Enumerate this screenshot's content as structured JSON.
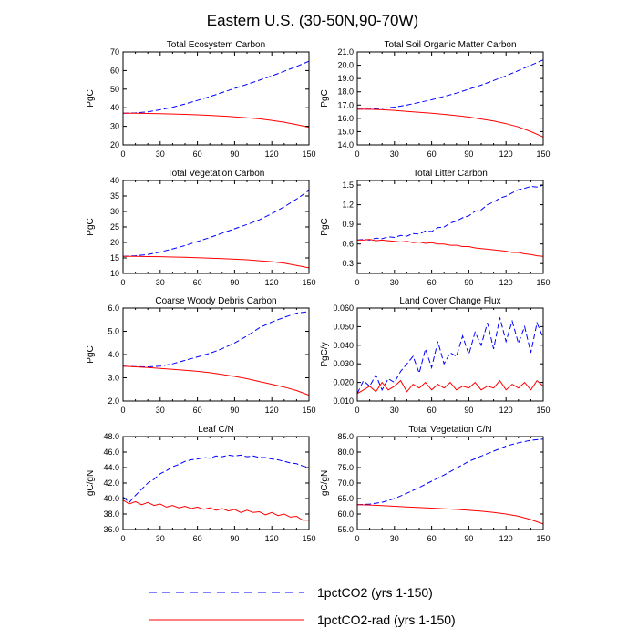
{
  "figure_title": "Eastern U.S. (30-50N,90-70W)",
  "legend": [
    {
      "label": "1pctCO2 (yrs 1-150)",
      "color": "#0000ff",
      "dash": "dashed"
    },
    {
      "label": "1pctCO2-rad (yrs 1-150)",
      "color": "#ff0000",
      "dash": "solid"
    }
  ],
  "chart_data": [
    {
      "type": "line",
      "title": "Total Ecosystem Carbon",
      "xlabel": "",
      "ylabel": "PgC",
      "xlim": [
        0,
        150
      ],
      "ylim": [
        20,
        70
      ],
      "xticks": [
        0,
        30,
        60,
        90,
        120,
        150
      ],
      "yticks": [
        20,
        30,
        40,
        50,
        60,
        70
      ],
      "yticklabels": [
        "20",
        "30",
        "40",
        "50",
        "60",
        "70"
      ],
      "x": [
        0,
        10,
        20,
        30,
        40,
        50,
        60,
        70,
        80,
        90,
        100,
        110,
        120,
        130,
        140,
        150
      ],
      "series": [
        {
          "name": "1pctCO2 (yrs 1-150)",
          "values": [
            37,
            37.2,
            37.8,
            38.9,
            40.3,
            42,
            43.9,
            46,
            48.2,
            50.4,
            52.6,
            54.8,
            57.1,
            59.6,
            62.2,
            65
          ]
        },
        {
          "name": "1pctCO2-rad (yrs 1-150)",
          "values": [
            37,
            37,
            36.9,
            36.8,
            36.6,
            36.4,
            36.2,
            35.9,
            35.5,
            35.1,
            34.6,
            34,
            33.2,
            32.2,
            30.9,
            29.5
          ]
        }
      ]
    },
    {
      "type": "line",
      "title": "Total Soil Organic Matter Carbon",
      "xlabel": "",
      "ylabel": "PgC",
      "xlim": [
        0,
        150
      ],
      "ylim": [
        14,
        21
      ],
      "xticks": [
        0,
        30,
        60,
        90,
        120,
        150
      ],
      "yticks": [
        14,
        15,
        16,
        17,
        18,
        19,
        20,
        21
      ],
      "yticklabels": [
        "14.0",
        "15.0",
        "16.0",
        "17.0",
        "18.0",
        "19.0",
        "20.0",
        "21.0"
      ],
      "x": [
        0,
        10,
        20,
        30,
        40,
        50,
        60,
        70,
        80,
        90,
        100,
        110,
        120,
        130,
        140,
        150
      ],
      "series": [
        {
          "name": "1pctCO2 (yrs 1-150)",
          "values": [
            16.7,
            16.7,
            16.75,
            16.85,
            17,
            17.2,
            17.4,
            17.65,
            17.9,
            18.2,
            18.5,
            18.85,
            19.2,
            19.6,
            20,
            20.4
          ]
        },
        {
          "name": "1pctCO2-rad (yrs 1-150)",
          "values": [
            16.7,
            16.68,
            16.65,
            16.6,
            16.52,
            16.45,
            16.38,
            16.3,
            16.2,
            16.1,
            15.95,
            15.8,
            15.6,
            15.35,
            15,
            14.6
          ]
        }
      ]
    },
    {
      "type": "line",
      "title": "Total Vegetation Carbon",
      "xlabel": "",
      "ylabel": "PgC",
      "xlim": [
        0,
        150
      ],
      "ylim": [
        10,
        40
      ],
      "xticks": [
        0,
        30,
        60,
        90,
        120,
        150
      ],
      "yticks": [
        10,
        15,
        20,
        25,
        30,
        35,
        40
      ],
      "yticklabels": [
        "10",
        "15",
        "20",
        "25",
        "30",
        "35",
        "40"
      ],
      "x": [
        0,
        10,
        20,
        30,
        40,
        50,
        60,
        70,
        80,
        90,
        100,
        110,
        120,
        130,
        140,
        150
      ],
      "series": [
        {
          "name": "1pctCO2 (yrs 1-150)",
          "values": [
            15.5,
            15.7,
            16.1,
            16.9,
            17.9,
            19,
            20.3,
            21.6,
            23,
            24.4,
            25.8,
            27.3,
            29.3,
            31.5,
            34,
            36.8
          ]
        },
        {
          "name": "1pctCO2-rad (yrs 1-150)",
          "values": [
            15.5,
            15.5,
            15.45,
            15.4,
            15.3,
            15.2,
            15.1,
            14.95,
            14.8,
            14.6,
            14.4,
            14.1,
            13.8,
            13.3,
            12.6,
            11.8
          ]
        }
      ]
    },
    {
      "type": "line",
      "title": "Total Litter Carbon",
      "xlabel": "",
      "ylabel": "PgC",
      "xlim": [
        0,
        150
      ],
      "ylim": [
        0.15,
        1.57
      ],
      "xticks": [
        0,
        30,
        60,
        90,
        120,
        150
      ],
      "yticks": [
        0.3,
        0.6,
        0.9,
        1.2,
        1.5
      ],
      "yticklabels": [
        "0.3",
        "0.6",
        "0.9",
        "1.2",
        "1.5"
      ],
      "x": [
        0,
        5,
        10,
        15,
        20,
        25,
        30,
        35,
        40,
        45,
        50,
        55,
        60,
        65,
        70,
        75,
        80,
        85,
        90,
        95,
        100,
        105,
        110,
        115,
        120,
        125,
        130,
        135,
        140,
        145,
        150
      ],
      "series": [
        {
          "name": "1pctCO2 (yrs 1-150)",
          "values": [
            0.66,
            0.67,
            0.66,
            0.69,
            0.68,
            0.71,
            0.7,
            0.73,
            0.72,
            0.76,
            0.75,
            0.8,
            0.79,
            0.85,
            0.86,
            0.92,
            0.95,
            1.0,
            1.03,
            1.1,
            1.12,
            1.2,
            1.24,
            1.3,
            1.33,
            1.38,
            1.43,
            1.45,
            1.48,
            1.47,
            1.5
          ]
        },
        {
          "name": "1pctCO2-rad (yrs 1-150)",
          "values": [
            0.66,
            0.66,
            0.67,
            0.65,
            0.66,
            0.65,
            0.64,
            0.63,
            0.64,
            0.62,
            0.63,
            0.61,
            0.62,
            0.6,
            0.6,
            0.58,
            0.58,
            0.56,
            0.56,
            0.54,
            0.53,
            0.52,
            0.51,
            0.5,
            0.49,
            0.47,
            0.47,
            0.45,
            0.44,
            0.42,
            0.41
          ]
        }
      ]
    },
    {
      "type": "line",
      "title": "Coarse Woody Debris Carbon",
      "xlabel": "",
      "ylabel": "PgC",
      "xlim": [
        0,
        150
      ],
      "ylim": [
        2,
        6
      ],
      "xticks": [
        0,
        30,
        60,
        90,
        120,
        150
      ],
      "yticks": [
        2,
        3,
        4,
        5,
        6
      ],
      "yticklabels": [
        "2.0",
        "3.0",
        "4.0",
        "5.0",
        "6.0"
      ],
      "x": [
        0,
        10,
        20,
        30,
        40,
        50,
        60,
        70,
        80,
        90,
        100,
        110,
        120,
        130,
        140,
        150
      ],
      "series": [
        {
          "name": "1pctCO2 (yrs 1-150)",
          "values": [
            3.5,
            3.48,
            3.47,
            3.5,
            3.6,
            3.75,
            3.9,
            4.05,
            4.25,
            4.5,
            4.8,
            5.15,
            5.4,
            5.6,
            5.78,
            5.85
          ]
        },
        {
          "name": "1pctCO2-rad (yrs 1-150)",
          "values": [
            3.5,
            3.47,
            3.44,
            3.4,
            3.36,
            3.32,
            3.28,
            3.22,
            3.14,
            3.06,
            2.96,
            2.84,
            2.72,
            2.6,
            2.45,
            2.25
          ]
        }
      ]
    },
    {
      "type": "line",
      "title": "Land Cover Change Flux",
      "xlabel": "",
      "ylabel": "PgC/y",
      "xlim": [
        0,
        150
      ],
      "ylim": [
        0.01,
        0.06
      ],
      "xticks": [
        0,
        30,
        60,
        90,
        120,
        150
      ],
      "yticks": [
        0.01,
        0.02,
        0.03,
        0.04,
        0.05,
        0.06
      ],
      "yticklabels": [
        "0.010",
        "0.020",
        "0.030",
        "0.040",
        "0.050",
        "0.060"
      ],
      "x": [
        0,
        5,
        10,
        15,
        20,
        25,
        30,
        35,
        40,
        45,
        50,
        55,
        60,
        65,
        70,
        75,
        80,
        85,
        90,
        95,
        100,
        105,
        110,
        115,
        120,
        125,
        130,
        135,
        140,
        145,
        150
      ],
      "series": [
        {
          "name": "1pctCO2 (yrs 1-150)",
          "values": [
            0.014,
            0.021,
            0.018,
            0.024,
            0.016,
            0.022,
            0.02,
            0.026,
            0.03,
            0.034,
            0.025,
            0.038,
            0.028,
            0.042,
            0.03,
            0.036,
            0.034,
            0.045,
            0.035,
            0.047,
            0.04,
            0.052,
            0.038,
            0.055,
            0.042,
            0.053,
            0.041,
            0.05,
            0.036,
            0.052,
            0.044
          ]
        },
        {
          "name": "1pctCO2-rad (yrs 1-150)",
          "values": [
            0.014,
            0.016,
            0.018,
            0.015,
            0.02,
            0.016,
            0.018,
            0.021,
            0.015,
            0.019,
            0.017,
            0.02,
            0.016,
            0.019,
            0.017,
            0.02,
            0.016,
            0.018,
            0.017,
            0.02,
            0.016,
            0.018,
            0.017,
            0.021,
            0.016,
            0.019,
            0.017,
            0.02,
            0.016,
            0.021,
            0.018
          ]
        }
      ]
    },
    {
      "type": "line",
      "title": "Leaf C/N",
      "xlabel": "",
      "ylabel": "gC/gN",
      "xlim": [
        0,
        150
      ],
      "ylim": [
        36,
        48
      ],
      "xticks": [
        0,
        30,
        60,
        90,
        120,
        150
      ],
      "yticks": [
        36,
        38,
        40,
        42,
        44,
        46,
        48
      ],
      "yticklabels": [
        "36.0",
        "38.0",
        "40.0",
        "42.0",
        "44.0",
        "46.0",
        "48.0"
      ],
      "x": [
        0,
        5,
        10,
        15,
        20,
        25,
        30,
        35,
        40,
        45,
        50,
        55,
        60,
        65,
        70,
        75,
        80,
        85,
        90,
        95,
        100,
        105,
        110,
        115,
        120,
        125,
        130,
        135,
        140,
        145,
        150
      ],
      "series": [
        {
          "name": "1pctCO2 (yrs 1-150)",
          "values": [
            40.2,
            39.5,
            40.4,
            41.2,
            42,
            42.5,
            43.2,
            43.6,
            44.1,
            44.4,
            44.8,
            45,
            45.1,
            45.3,
            45.2,
            45.5,
            45.4,
            45.6,
            45.5,
            45.6,
            45.4,
            45.5,
            45.3,
            45.3,
            45.1,
            45,
            44.8,
            44.6,
            44.5,
            44.2,
            44
          ]
        },
        {
          "name": "1pctCO2-rad (yrs 1-150)",
          "values": [
            39.8,
            39.3,
            39.6,
            39.2,
            39.5,
            39.1,
            39.3,
            38.9,
            39.1,
            38.8,
            39,
            38.7,
            38.9,
            38.6,
            38.8,
            38.5,
            38.7,
            38.4,
            38.6,
            38.2,
            38.5,
            38.2,
            38.3,
            37.9,
            38.2,
            37.8,
            38,
            37.6,
            37.7,
            37.2,
            37.2
          ]
        }
      ]
    },
    {
      "type": "line",
      "title": "Total Vegetation C/N",
      "xlabel": "",
      "ylabel": "gC/gN",
      "xlim": [
        0,
        150
      ],
      "ylim": [
        55,
        85
      ],
      "xticks": [
        0,
        30,
        60,
        90,
        120,
        150
      ],
      "yticks": [
        55,
        60,
        65,
        70,
        75,
        80,
        85
      ],
      "yticklabels": [
        "55.0",
        "60.0",
        "65.0",
        "70.0",
        "75.0",
        "80.0",
        "85.0"
      ],
      "x": [
        0,
        10,
        20,
        30,
        40,
        50,
        60,
        70,
        80,
        90,
        100,
        110,
        120,
        130,
        140,
        150
      ],
      "series": [
        {
          "name": "1pctCO2 (yrs 1-150)",
          "values": [
            63,
            63.2,
            63.8,
            65,
            66.7,
            68.6,
            70.6,
            72.6,
            74.8,
            77,
            78.7,
            80.3,
            81.9,
            83,
            83.8,
            84.2
          ]
        },
        {
          "name": "1pctCO2-rad (yrs 1-150)",
          "values": [
            63,
            62.9,
            62.7,
            62.5,
            62.3,
            62.1,
            61.9,
            61.7,
            61.5,
            61.2,
            60.9,
            60.5,
            60,
            59.3,
            58.2,
            56.8
          ]
        }
      ]
    }
  ]
}
